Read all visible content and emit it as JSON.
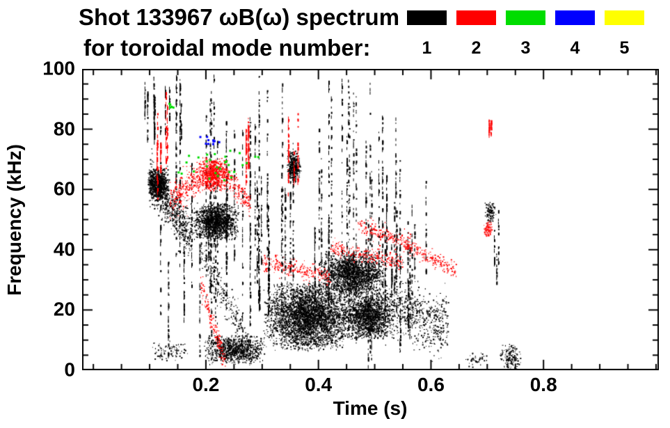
{
  "title": {
    "line1": "Shot 133967 ωB(ω) spectrum",
    "line2": "for toroidal mode number:"
  },
  "legend": {
    "modes": [
      {
        "label": "1",
        "color": "#000000"
      },
      {
        "label": "2",
        "color": "#ff0000"
      },
      {
        "label": "3",
        "color": "#00dd00"
      },
      {
        "label": "4",
        "color": "#0000ff"
      },
      {
        "label": "5",
        "color": "#ffff00"
      }
    ]
  },
  "chart_data": {
    "type": "scatter",
    "title": "Shot 133967 ωB(ω) spectrum for toroidal mode number: 1 2 3 4 5",
    "xlabel": "Time (s)",
    "ylabel": "Frequency (kHz)",
    "xlim": [
      -0.02,
      1.005
    ],
    "ylim": [
      0,
      100
    ],
    "xticks": {
      "major": [
        0.2,
        0.4,
        0.6,
        0.8
      ],
      "labels": [
        "0.2",
        "0.4",
        "0.6",
        "0.8"
      ],
      "minor_step": 0.05
    },
    "yticks": {
      "major": [
        0,
        20,
        40,
        60,
        80,
        100
      ],
      "labels": [
        "0",
        "20",
        "40",
        "60",
        "80",
        "100"
      ],
      "minor_step": 5
    },
    "series": [
      {
        "name": "n=1",
        "color": "#000000"
      },
      {
        "name": "n=2",
        "color": "#ff0000"
      },
      {
        "name": "n=3",
        "color": "#00dd00"
      },
      {
        "name": "n=4",
        "color": "#0000ff"
      },
      {
        "name": "n=5",
        "color": "#ffff00"
      }
    ],
    "clusters": [
      {
        "mode": 1,
        "type": "blob",
        "t": [
          0.095,
          0.135
        ],
        "f": [
          56,
          68
        ],
        "n": 900
      },
      {
        "mode": 1,
        "type": "band",
        "t": [
          0.1,
          0.175
        ],
        "f": [
          64,
          43
        ],
        "jitter": 3.5,
        "n": 650
      },
      {
        "mode": 1,
        "type": "blob",
        "t": [
          0.175,
          0.26
        ],
        "f": [
          43,
          56
        ],
        "n": 1500
      },
      {
        "mode": 1,
        "type": "band",
        "t": [
          0.19,
          0.28
        ],
        "f": [
          40,
          7
        ],
        "jitter": 3,
        "n": 260
      },
      {
        "mode": 1,
        "type": "blob",
        "t": [
          0.195,
          0.305
        ],
        "f": [
          2,
          12
        ],
        "n": 1000
      },
      {
        "mode": 1,
        "type": "vstreaks",
        "t": [
          0.09,
          0.3
        ],
        "f": [
          0,
          100
        ],
        "k": 26,
        "n": 40
      },
      {
        "mode": 1,
        "type": "vstreaks",
        "t": [
          0.09,
          0.17
        ],
        "f": [
          75,
          100
        ],
        "k": 10,
        "n": 22
      },
      {
        "mode": 1,
        "type": "blob",
        "t": [
          0.1,
          0.17
        ],
        "f": [
          3,
          10
        ],
        "n": 90
      },
      {
        "mode": 1,
        "type": "blob",
        "t": [
          0.343,
          0.368
        ],
        "f": [
          62,
          73
        ],
        "n": 380
      },
      {
        "mode": 1,
        "type": "vstreaks",
        "t": [
          0.3,
          0.55
        ],
        "f": [
          0,
          100
        ],
        "k": 30,
        "n": 42
      },
      {
        "mode": 1,
        "type": "blob",
        "t": [
          0.3,
          0.46
        ],
        "f": [
          6,
          30
        ],
        "n": 3800
      },
      {
        "mode": 1,
        "type": "blob",
        "t": [
          0.4,
          0.52
        ],
        "f": [
          24,
          40
        ],
        "n": 2000
      },
      {
        "mode": 1,
        "type": "blob",
        "t": [
          0.44,
          0.53
        ],
        "f": [
          10,
          26
        ],
        "n": 1500
      },
      {
        "mode": 1,
        "type": "band",
        "t": [
          0.5,
          0.63
        ],
        "f": [
          22,
          15
        ],
        "jitter": 4.5,
        "n": 750
      },
      {
        "mode": 1,
        "type": "vstreaks",
        "t": [
          0.52,
          0.57
        ],
        "f": [
          0,
          65
        ],
        "k": 6,
        "n": 28
      },
      {
        "mode": 1,
        "type": "vstreaks",
        "t": [
          0.55,
          0.6
        ],
        "f": [
          20,
          70
        ],
        "k": 3,
        "n": 18
      },
      {
        "mode": 1,
        "type": "blob",
        "t": [
          0.695,
          0.715
        ],
        "f": [
          48,
          57
        ],
        "n": 130
      },
      {
        "mode": 1,
        "type": "vstreaks",
        "t": [
          0.7,
          0.72
        ],
        "f": [
          25,
          58
        ],
        "k": 3,
        "n": 16
      },
      {
        "mode": 1,
        "type": "blob",
        "t": [
          0.72,
          0.76
        ],
        "f": [
          0,
          9
        ],
        "n": 160
      },
      {
        "mode": 1,
        "type": "blob",
        "t": [
          0.655,
          0.7
        ],
        "f": [
          1,
          6
        ],
        "n": 45
      },
      {
        "mode": 1,
        "type": "vstreaks",
        "t": [
          0.29,
          0.312
        ],
        "f": [
          5,
          55
        ],
        "k": 3,
        "n": 40
      },
      {
        "mode": 2,
        "type": "vstreaks",
        "t": [
          0.1,
          0.135
        ],
        "f": [
          55,
          95
        ],
        "k": 5,
        "n": 26
      },
      {
        "mode": 2,
        "type": "band",
        "t": [
          0.135,
          0.19
        ],
        "f": [
          57,
          64
        ],
        "jitter": 2.5,
        "n": 260
      },
      {
        "mode": 2,
        "type": "blob",
        "t": [
          0.185,
          0.24
        ],
        "f": [
          59,
          71
        ],
        "n": 750
      },
      {
        "mode": 2,
        "type": "band",
        "t": [
          0.235,
          0.278
        ],
        "f": [
          65,
          55
        ],
        "jitter": 2,
        "n": 170
      },
      {
        "mode": 2,
        "type": "band",
        "t": [
          0.19,
          0.235
        ],
        "f": [
          28,
          2
        ],
        "jitter": 2,
        "n": 150
      },
      {
        "mode": 2,
        "type": "vstreaks",
        "t": [
          0.266,
          0.275
        ],
        "f": [
          57,
          88
        ],
        "k": 2,
        "n": 45
      },
      {
        "mode": 2,
        "type": "vstreaks",
        "t": [
          0.345,
          0.365
        ],
        "f": [
          58,
          88
        ],
        "k": 4,
        "n": 22
      },
      {
        "mode": 2,
        "type": "band",
        "t": [
          0.3,
          0.42
        ],
        "f": [
          36,
          31
        ],
        "jitter": 1.4,
        "n": 230
      },
      {
        "mode": 2,
        "type": "band",
        "t": [
          0.42,
          0.55
        ],
        "f": [
          41,
          36
        ],
        "jitter": 1.4,
        "n": 210
      },
      {
        "mode": 2,
        "type": "band",
        "t": [
          0.47,
          0.565
        ],
        "f": [
          48,
          42
        ],
        "jitter": 1.4,
        "n": 170
      },
      {
        "mode": 2,
        "type": "band",
        "t": [
          0.55,
          0.645
        ],
        "f": [
          42,
          33
        ],
        "jitter": 1.4,
        "n": 190
      },
      {
        "mode": 2,
        "type": "blob",
        "t": [
          0.693,
          0.708
        ],
        "f": [
          44,
          50
        ],
        "n": 95
      },
      {
        "mode": 2,
        "type": "vstreaks",
        "t": [
          0.695,
          0.71
        ],
        "f": [
          77,
          86
        ],
        "k": 2,
        "n": 18
      },
      {
        "mode": 3,
        "type": "blob",
        "t": [
          0.14,
          0.31
        ],
        "f": [
          63,
          74
        ],
        "n": 30,
        "dot": 3
      },
      {
        "mode": 3,
        "type": "blob",
        "t": [
          0.132,
          0.142
        ],
        "f": [
          86,
          90
        ],
        "n": 6,
        "dot": 3
      },
      {
        "mode": 4,
        "type": "blob",
        "t": [
          0.175,
          0.235
        ],
        "f": [
          74,
          78
        ],
        "n": 10,
        "dot": 3
      }
    ]
  }
}
